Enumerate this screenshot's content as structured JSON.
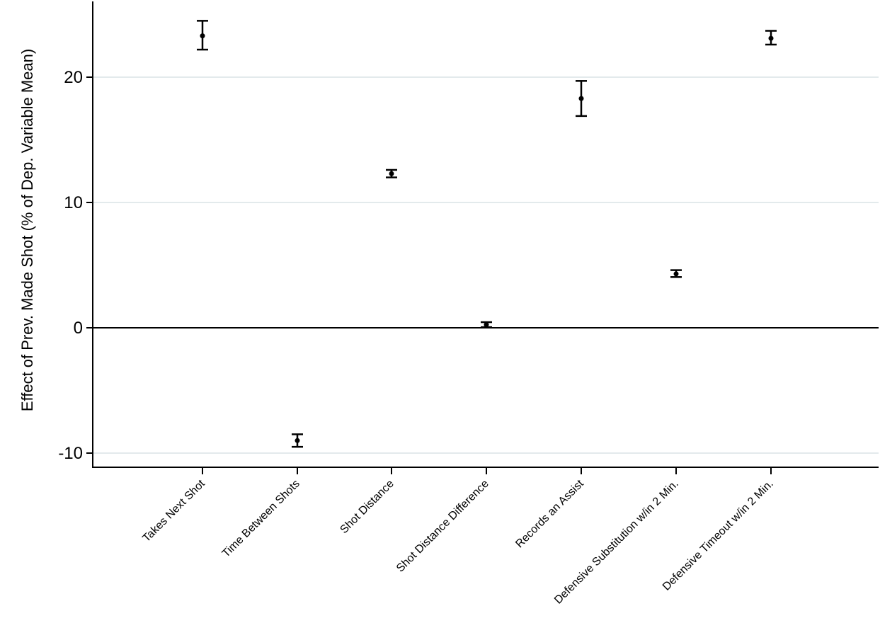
{
  "chart_data": {
    "type": "scatter",
    "title": "",
    "xlabel": "",
    "ylabel": "Effect of Prev. Made Shot (% of Dep. Variable Mean)",
    "ylim": [
      -11,
      26
    ],
    "yticks": [
      -10,
      0,
      10,
      20
    ],
    "grid": true,
    "categories": [
      "Takes Next Shot",
      "Time Between Shots",
      "Shot Distance",
      "Shot Distance Difference",
      "Records an Assist",
      "Defensive Substitution w/in 2 Min.",
      "Defensive Timeout w/in 2 Min."
    ],
    "estimates": [
      23.3,
      -9.0,
      12.3,
      0.25,
      18.3,
      4.3,
      23.1
    ],
    "ci_low": [
      22.2,
      -9.5,
      12.0,
      0.05,
      16.9,
      4.05,
      22.6
    ],
    "ci_high": [
      24.5,
      -8.5,
      12.6,
      0.45,
      19.7,
      4.6,
      23.7
    ],
    "colors": {
      "marker": "#000000",
      "grid": "#e3eaec",
      "axis": "#000000"
    }
  }
}
